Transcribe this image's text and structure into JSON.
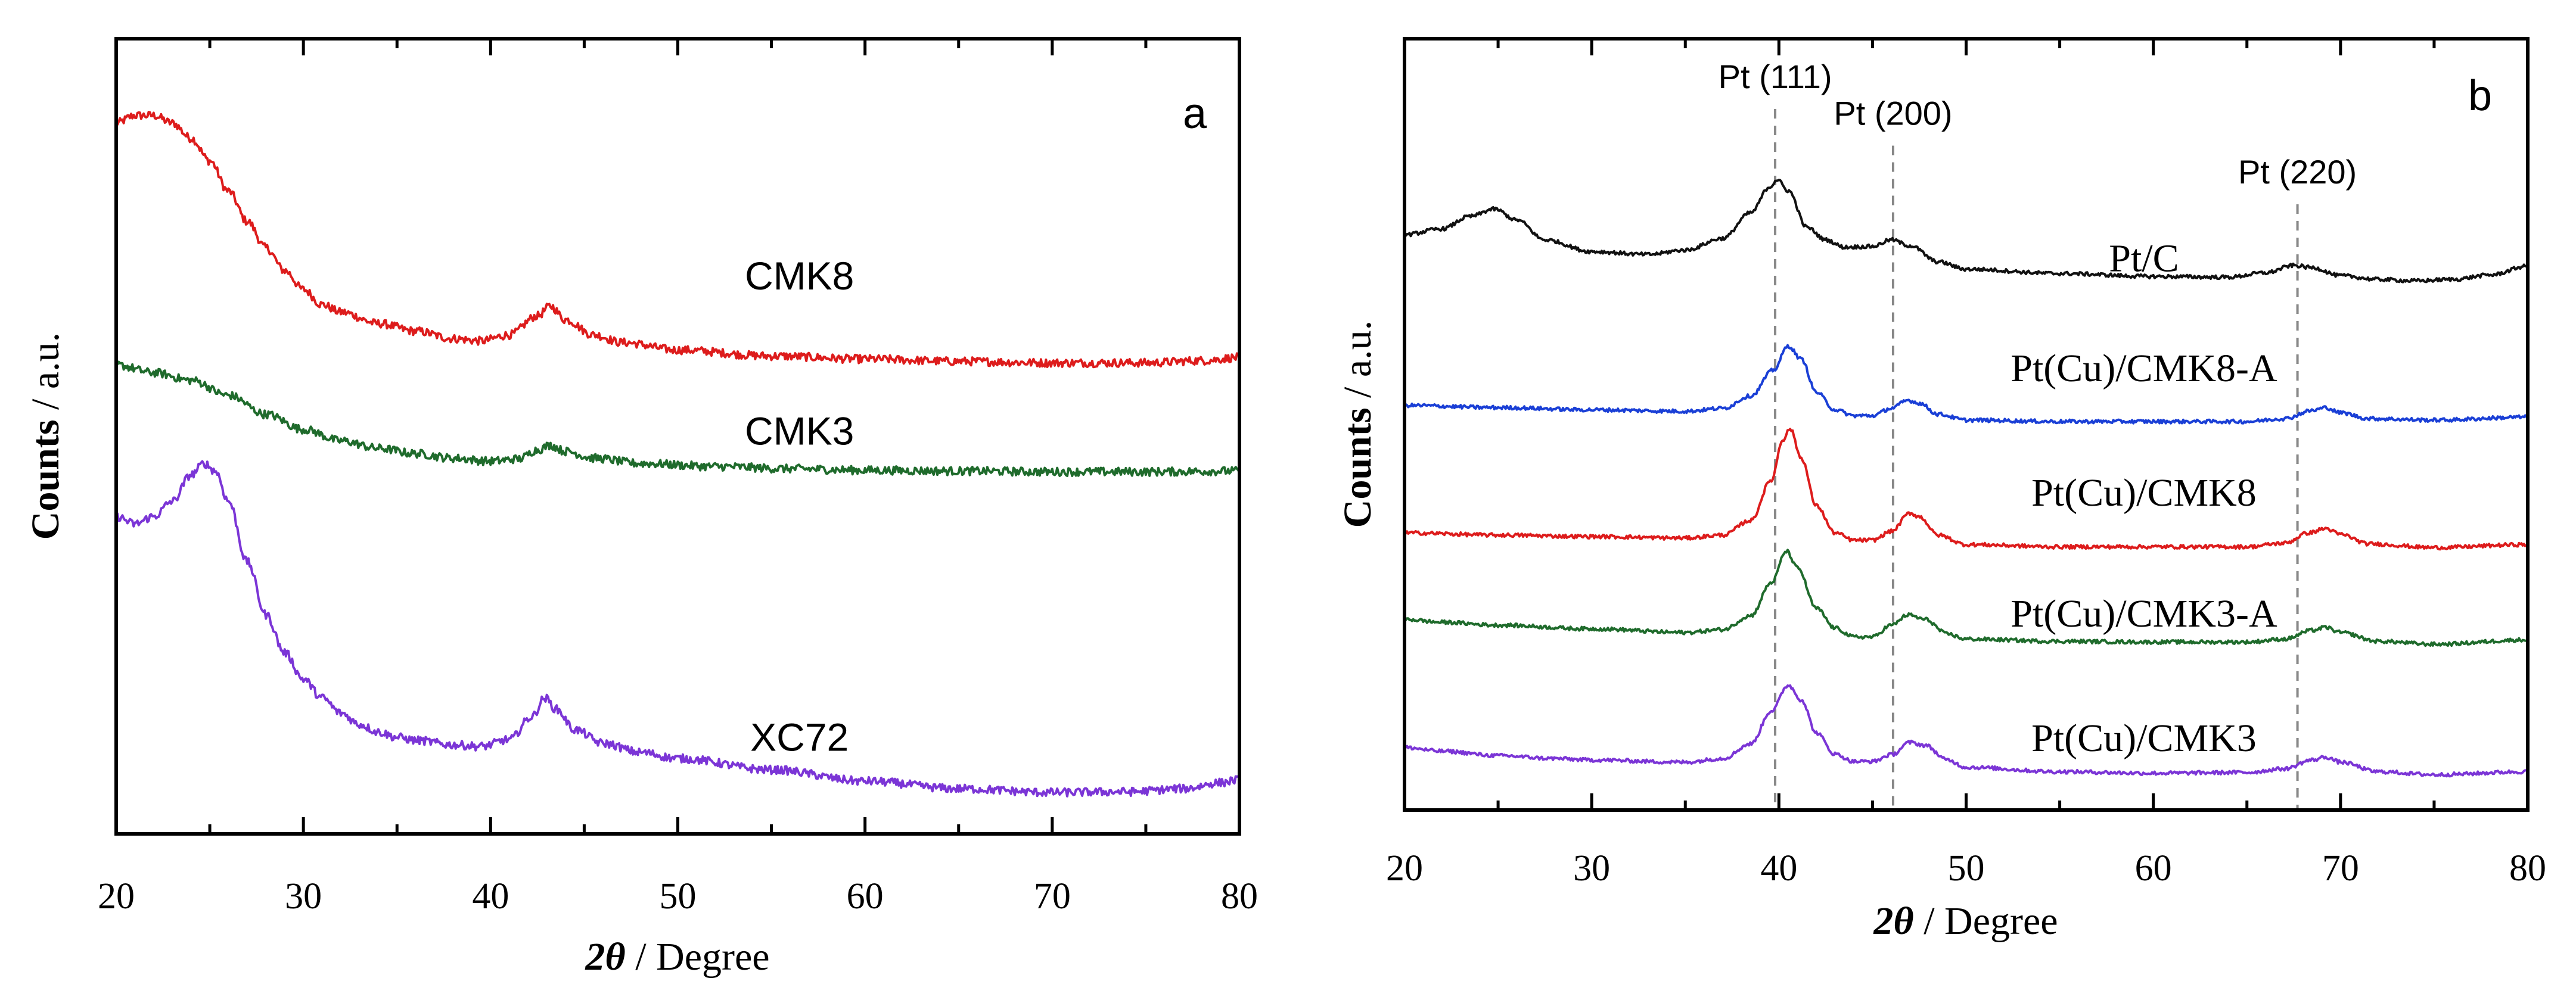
{
  "chart_data": [
    {
      "type": "line",
      "panel": "a",
      "xlabel_var": "2θ",
      "xlabel_unit": " / Degree",
      "ylabel_bold": "Counts",
      "ylabel_unit": " / a.u.",
      "xlim": [
        20,
        80
      ],
      "ylim": [
        0,
        100
      ],
      "xticks": [
        20,
        30,
        40,
        50,
        60,
        70,
        80
      ],
      "yticks_shown": false,
      "series": [
        {
          "name": "CMK8",
          "color": "#dd1c1c",
          "label_x": 56.5,
          "label_y": 70,
          "points": [
            [
              20,
              92
            ],
            [
              21,
              93
            ],
            [
              22,
              93
            ],
            [
              23,
              92
            ],
            [
              24,
              90
            ],
            [
              25,
              87
            ],
            [
              26,
              83
            ],
            [
              27,
              79
            ],
            [
              28,
              75.5
            ],
            [
              29,
              72.5
            ],
            [
              30,
              70
            ],
            [
              31,
              68
            ],
            [
              32,
              67
            ],
            [
              34,
              65.5
            ],
            [
              36,
              64.5
            ],
            [
              38,
              63.5
            ],
            [
              39.5,
              63.2
            ],
            [
              41,
              64
            ],
            [
              42.5,
              66.5
            ],
            [
              43.2,
              67.8
            ],
            [
              44,
              66
            ],
            [
              45.5,
              64
            ],
            [
              47,
              63
            ],
            [
              50,
              62
            ],
            [
              55,
              61.2
            ],
            [
              60,
              60.8
            ],
            [
              65,
              60.5
            ],
            [
              70,
              60.3
            ],
            [
              75,
              60.3
            ],
            [
              78,
              60.6
            ],
            [
              80,
              61
            ]
          ]
        },
        {
          "name": "CMK3",
          "color": "#1f6b2c",
          "label_x": 56.5,
          "label_y": 49.5,
          "points": [
            [
              20,
              60
            ],
            [
              22,
              59
            ],
            [
              24,
              58
            ],
            [
              26,
              56
            ],
            [
              28,
              53.5
            ],
            [
              30,
              51.5
            ],
            [
              32,
              50
            ],
            [
              34,
              49
            ],
            [
              36,
              48.3
            ],
            [
              38,
              47.7
            ],
            [
              40,
              47.3
            ],
            [
              41.5,
              47.6
            ],
            [
              42.5,
              48.8
            ],
            [
              43.2,
              49.4
            ],
            [
              44,
              48.6
            ],
            [
              45.5,
              47.7
            ],
            [
              48,
              47
            ],
            [
              52,
              46.6
            ],
            [
              56,
              46.3
            ],
            [
              60,
              46.1
            ],
            [
              65,
              46
            ],
            [
              70,
              45.9
            ],
            [
              75,
              45.9
            ],
            [
              80,
              46
            ]
          ]
        },
        {
          "name": "XC72",
          "color": "#7b35d6",
          "label_x": 56.5,
          "label_y": 9,
          "points": [
            [
              20,
              40
            ],
            [
              21,
              39
            ],
            [
              22,
              40
            ],
            [
              23,
              42
            ],
            [
              24,
              45.5
            ],
            [
              24.7,
              47
            ],
            [
              25.3,
              46
            ],
            [
              26,
              42
            ],
            [
              27,
              34
            ],
            [
              28,
              27
            ],
            [
              29,
              22
            ],
            [
              30,
              18.5
            ],
            [
              31,
              16
            ],
            [
              32,
              14
            ],
            [
              33,
              12.5
            ],
            [
              34,
              11.5
            ],
            [
              35,
              10.8
            ],
            [
              36,
              10.4
            ],
            [
              38,
              9.8
            ],
            [
              39.5,
              9.6
            ],
            [
              41,
              10.5
            ],
            [
              42.2,
              13.5
            ],
            [
              42.9,
              16
            ],
            [
              43.5,
              14.5
            ],
            [
              44.5,
              11.8
            ],
            [
              46,
              10
            ],
            [
              48,
              8.8
            ],
            [
              50,
              8
            ],
            [
              55,
              6.5
            ],
            [
              60,
              5
            ],
            [
              65,
              4
            ],
            [
              70,
              3.5
            ],
            [
              74,
              3.6
            ],
            [
              77,
              4
            ],
            [
              79,
              4.8
            ],
            [
              80,
              5.2
            ]
          ]
        }
      ]
    },
    {
      "type": "line",
      "panel": "b",
      "xlabel_var": "2θ",
      "xlabel_unit": " / Degree",
      "ylabel_bold": "Counts",
      "ylabel_unit": " / a.u.",
      "xlim": [
        20,
        80
      ],
      "ylim": [
        0,
        100
      ],
      "xticks": [
        20,
        30,
        40,
        50,
        60,
        70,
        80
      ],
      "yticks_shown": false,
      "reference_lines": [
        {
          "label": "Pt (111)",
          "x": 39.8,
          "label_y": 96.5
        },
        {
          "label": "Pt (200)",
          "x": 46.1,
          "label_y": 91.5
        },
        {
          "label": "Pt (220)",
          "x": 67.7,
          "label_y": 83.5
        }
      ],
      "series": [
        {
          "name": "Pt/C",
          "color": "#111111",
          "label_x": 59.5,
          "label_y": 71.5,
          "points": [
            [
              20,
              76.5
            ],
            [
              22,
              77.3
            ],
            [
              23.5,
              79
            ],
            [
              24.8,
              80
            ],
            [
              26,
              78.5
            ],
            [
              27.5,
              75.8
            ],
            [
              30,
              74.2
            ],
            [
              33,
              73.8
            ],
            [
              35,
              74.4
            ],
            [
              37,
              76
            ],
            [
              38.5,
              79.5
            ],
            [
              39.5,
              83
            ],
            [
              39.9,
              84
            ],
            [
              40.5,
              82.5
            ],
            [
              41.5,
              77.5
            ],
            [
              42.5,
              75.8
            ],
            [
              43.5,
              74.8
            ],
            [
              45,
              74.9
            ],
            [
              46,
              75.8
            ],
            [
              47,
              75
            ],
            [
              48.5,
              72.8
            ],
            [
              50,
              71.8
            ],
            [
              55,
              71.2
            ],
            [
              60,
              70.8
            ],
            [
              64,
              70.7
            ],
            [
              66,
              71.3
            ],
            [
              67.5,
              72.3
            ],
            [
              68.5,
              72
            ],
            [
              70,
              70.9
            ],
            [
              72,
              70.4
            ],
            [
              74,
              70.2
            ],
            [
              76,
              70.4
            ],
            [
              78,
              71
            ],
            [
              80,
              72.2
            ]
          ]
        },
        {
          "name": "Pt(Cu)/CMK8-A",
          "color": "#1a3fd6",
          "label_x": 59.5,
          "label_y": 56.5,
          "points": [
            [
              20,
              53.2
            ],
            [
              25,
              52.9
            ],
            [
              30,
              52.6
            ],
            [
              35,
              52.4
            ],
            [
              37,
              52.8
            ],
            [
              38.5,
              54.5
            ],
            [
              39.7,
              58
            ],
            [
              40.5,
              61.3
            ],
            [
              41.2,
              59.5
            ],
            [
              42,
              55
            ],
            [
              43,
              52.6
            ],
            [
              44,
              51.8
            ],
            [
              45,
              51.8
            ],
            [
              46,
              52.8
            ],
            [
              46.9,
              53.9
            ],
            [
              47.5,
              53.5
            ],
            [
              48.5,
              52
            ],
            [
              50,
              51.2
            ],
            [
              55,
              51
            ],
            [
              60,
              51
            ],
            [
              65,
              51
            ],
            [
              67,
              51.4
            ],
            [
              68.5,
              52.5
            ],
            [
              69.2,
              52.9
            ],
            [
              70,
              52.2
            ],
            [
              71.5,
              51.4
            ],
            [
              75,
              51.2
            ],
            [
              80,
              51.6
            ]
          ]
        },
        {
          "name": "Pt(Cu)/CMK8",
          "color": "#dd1c1c",
          "label_x": 59.5,
          "label_y": 39.5,
          "points": [
            [
              20,
              35.8
            ],
            [
              25,
              35.5
            ],
            [
              30,
              35.3
            ],
            [
              35,
              35.1
            ],
            [
              37,
              35.5
            ],
            [
              38.5,
              37.5
            ],
            [
              39.6,
              43
            ],
            [
              40.2,
              48.5
            ],
            [
              40.6,
              50
            ],
            [
              41.2,
              46
            ],
            [
              42,
              39.5
            ],
            [
              43,
              35.8
            ],
            [
              44,
              34.8
            ],
            [
              45,
              34.8
            ],
            [
              46,
              36
            ],
            [
              47,
              38.5
            ],
            [
              47.5,
              38
            ],
            [
              48.5,
              35.5
            ],
            [
              50,
              34.2
            ],
            [
              55,
              33.9
            ],
            [
              60,
              33.9
            ],
            [
              65,
              33.9
            ],
            [
              67,
              34.4
            ],
            [
              68.3,
              35.8
            ],
            [
              69.2,
              36.4
            ],
            [
              70,
              35.6
            ],
            [
              71.5,
              34.3
            ],
            [
              75,
              33.8
            ],
            [
              80,
              34.2
            ]
          ]
        },
        {
          "name": "Pt(Cu)/CMK3-A",
          "color": "#1f6b2c",
          "label_x": 59.5,
          "label_y": 23,
          "points": [
            [
              20,
              24
            ],
            [
              22,
              23.6
            ],
            [
              25,
              23.2
            ],
            [
              30,
              22.7
            ],
            [
              35,
              22.2
            ],
            [
              37,
              22.6
            ],
            [
              38.5,
              24.5
            ],
            [
              39.6,
              29
            ],
            [
              40.4,
              33.3
            ],
            [
              41,
              31
            ],
            [
              42,
              25.5
            ],
            [
              43,
              22.8
            ],
            [
              44,
              21.6
            ],
            [
              45,
              21.6
            ],
            [
              46,
              23.2
            ],
            [
              46.9,
              24.6
            ],
            [
              47.8,
              24
            ],
            [
              49,
              22
            ],
            [
              50,
              21.3
            ],
            [
              55,
              21
            ],
            [
              60,
              20.9
            ],
            [
              65,
              20.9
            ],
            [
              67,
              21.3
            ],
            [
              68.5,
              22.5
            ],
            [
              69.2,
              22.9
            ],
            [
              70,
              22.2
            ],
            [
              72,
              21
            ],
            [
              75,
              20.6
            ],
            [
              80,
              21.2
            ]
          ]
        },
        {
          "name": "Pt(Cu)/CMK3",
          "color": "#7b35d6",
          "label_x": 59.5,
          "label_y": 6,
          "points": [
            [
              20,
              6.5
            ],
            [
              22,
              6
            ],
            [
              25,
              5.4
            ],
            [
              28,
              5
            ],
            [
              30,
              4.8
            ],
            [
              35,
              4.5
            ],
            [
              37,
              5
            ],
            [
              38.5,
              7
            ],
            [
              39.6,
              11.5
            ],
            [
              40.5,
              15
            ],
            [
              41.2,
              13
            ],
            [
              42,
              8.5
            ],
            [
              43,
              5.6
            ],
            [
              44,
              4.6
            ],
            [
              45,
              4.6
            ],
            [
              46,
              5.5
            ],
            [
              47,
              7.2
            ],
            [
              47.8,
              6.8
            ],
            [
              49,
              4.8
            ],
            [
              50,
              3.8
            ],
            [
              55,
              3.2
            ],
            [
              60,
              3
            ],
            [
              65,
              3.1
            ],
            [
              67,
              3.6
            ],
            [
              68.5,
              4.8
            ],
            [
              69.2,
              5.2
            ],
            [
              70,
              4.5
            ],
            [
              72,
              3.2
            ],
            [
              75,
              2.8
            ],
            [
              80,
              3.2
            ]
          ]
        }
      ]
    }
  ]
}
